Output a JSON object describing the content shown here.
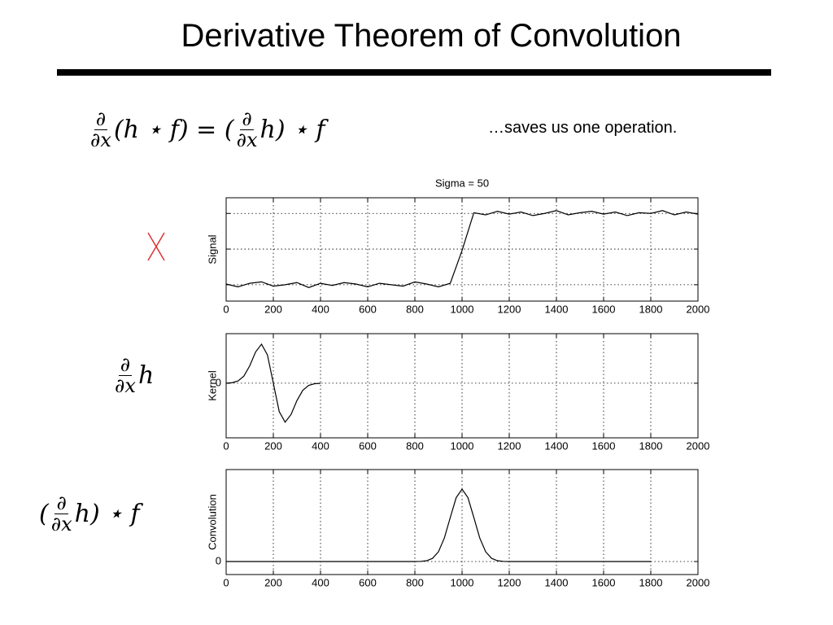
{
  "header": {
    "title": "Derivative Theorem of Convolution"
  },
  "note": "…saves us one operation.",
  "equation": [
    {
      "num": "∂",
      "den": "∂x"
    },
    "(h ⋆ f) = (",
    {
      "num": "∂",
      "den": "∂x"
    },
    "h) ⋆ f"
  ],
  "kernel_label": [
    {
      "num": "∂",
      "den": "∂x"
    },
    "h"
  ],
  "convolution_label": [
    "(",
    {
      "num": "∂",
      "den": "∂x"
    },
    "h) ⋆ f"
  ],
  "chart_data": [
    {
      "type": "line",
      "title": "Sigma = 50",
      "ylabel": "Signal",
      "color": "#000000",
      "grid": true,
      "xlim": [
        0,
        2000
      ],
      "xticks": [
        0,
        200,
        400,
        600,
        800,
        1000,
        1200,
        1400,
        1600,
        1800,
        2000
      ],
      "ylim": [
        -0.23,
        1.22
      ],
      "ygrid": [
        0,
        0.5,
        1
      ],
      "x": [
        0,
        50,
        100,
        150,
        200,
        250,
        300,
        350,
        400,
        450,
        500,
        550,
        600,
        650,
        700,
        750,
        800,
        850,
        900,
        950,
        1000,
        1050,
        1100,
        1150,
        1200,
        1250,
        1300,
        1350,
        1400,
        1450,
        1500,
        1550,
        1600,
        1650,
        1700,
        1750,
        1800,
        1850,
        1900,
        1950,
        2000
      ],
      "values": [
        0.01,
        -0.03,
        0.02,
        0.04,
        -0.02,
        0.0,
        0.03,
        -0.04,
        0.02,
        -0.01,
        0.03,
        0.01,
        -0.03,
        0.02,
        0.0,
        -0.02,
        0.04,
        0.01,
        -0.03,
        0.02,
        0.48,
        1.01,
        0.98,
        1.03,
        0.99,
        1.02,
        0.97,
        1.0,
        1.04,
        0.98,
        1.01,
        1.03,
        0.99,
        1.02,
        0.97,
        1.01,
        1.0,
        1.04,
        0.98,
        1.02,
        0.99
      ]
    },
    {
      "type": "line",
      "ylabel": "Kernel",
      "color": "#000000",
      "grid": true,
      "xlim": [
        0,
        2000
      ],
      "xticks": [
        0,
        200,
        400,
        600,
        800,
        1000,
        1200,
        1400,
        1600,
        1800,
        2000
      ],
      "ylim": [
        -1.4,
        1.27
      ],
      "yticks": [
        0
      ],
      "x": [
        0,
        25,
        50,
        75,
        100,
        125,
        150,
        175,
        200,
        225,
        250,
        275,
        300,
        325,
        350,
        375,
        400
      ],
      "values": [
        0.002,
        0.013,
        0.055,
        0.181,
        0.446,
        0.803,
        1,
        0.727,
        0,
        -0.727,
        -1,
        -0.803,
        -0.446,
        -0.181,
        -0.055,
        -0.013,
        -0.002
      ]
    },
    {
      "type": "line",
      "ylabel": "Convolution",
      "color": "#000000",
      "grid": true,
      "xlim": [
        0,
        2000
      ],
      "xticks": [
        0,
        200,
        400,
        600,
        800,
        1000,
        1200,
        1400,
        1600,
        1800,
        2000
      ],
      "ylim": [
        -0.18,
        1.27
      ],
      "yticks": [
        0
      ],
      "x": [
        0,
        200,
        400,
        600,
        800,
        825,
        850,
        875,
        900,
        925,
        950,
        975,
        1000,
        1025,
        1050,
        1075,
        1100,
        1125,
        1150,
        1175,
        1200,
        1400,
        1600,
        1800
      ],
      "values": [
        0,
        0,
        0,
        0,
        0,
        0.002,
        0.011,
        0.044,
        0.135,
        0.325,
        0.607,
        0.882,
        1,
        0.882,
        0.607,
        0.325,
        0.135,
        0.044,
        0.011,
        0.002,
        0,
        0,
        0,
        0
      ]
    }
  ]
}
